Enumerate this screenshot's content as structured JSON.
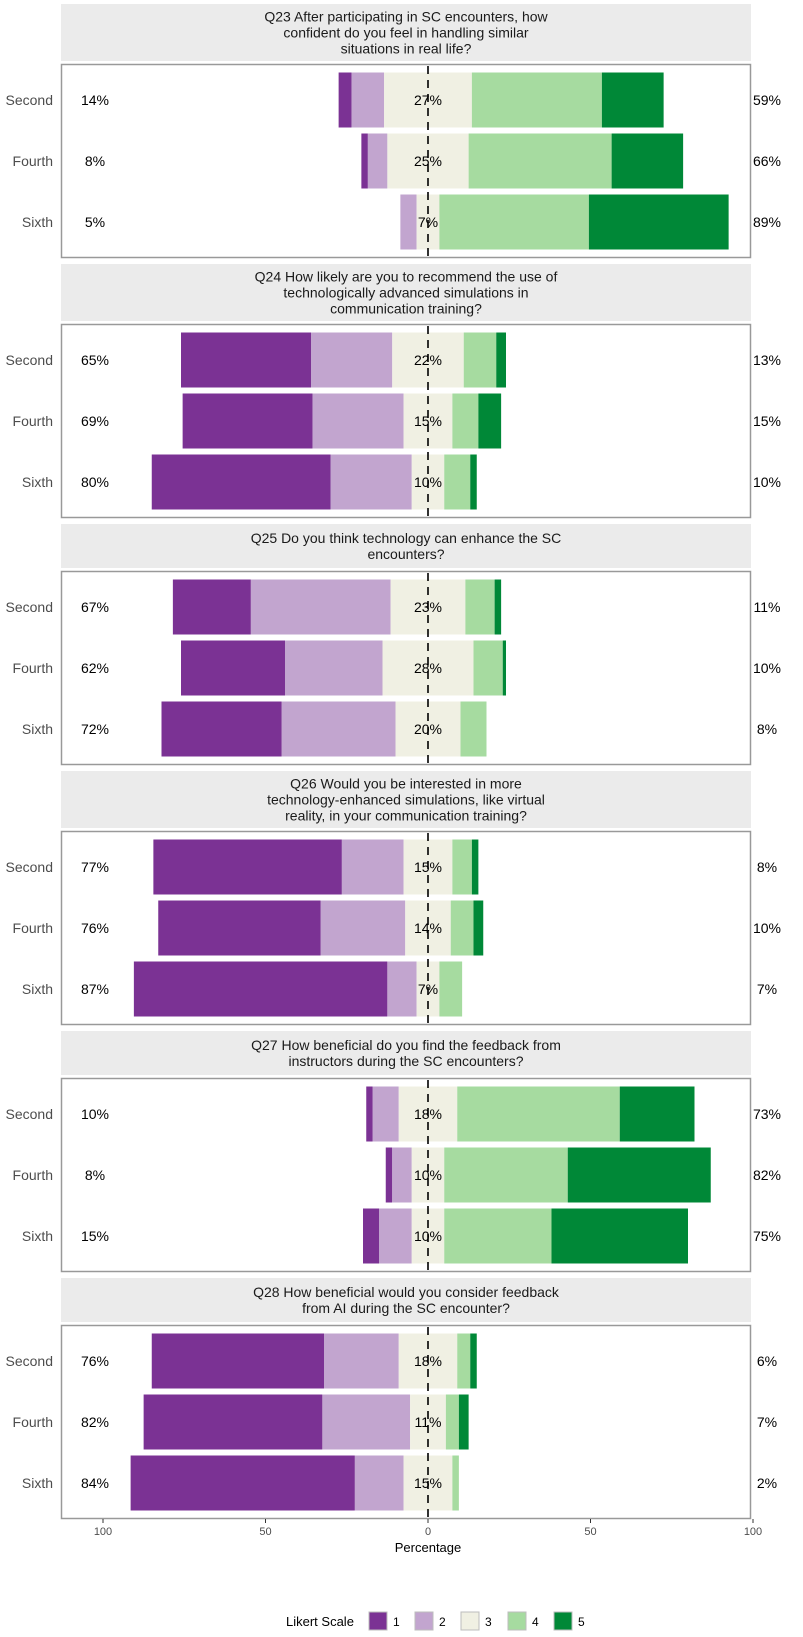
{
  "chart_data": {
    "type": "bar",
    "subtype": "diverging-stacked-likert",
    "xlabel": "Percentage",
    "xlim": [
      -100,
      100
    ],
    "x_ticks": [
      -100,
      -50,
      0,
      50,
      100
    ],
    "x_tick_labels": [
      "100",
      "50",
      "0",
      "50",
      "100"
    ],
    "legend": {
      "title": "Likert Scale",
      "placement": "bottom",
      "levels": [
        "1",
        "2",
        "3",
        "4",
        "5"
      ]
    },
    "colors": {
      "1": "#7b3294",
      "2": "#c2a5cf",
      "3": "#f0f0e3",
      "4": "#a6dba0",
      "5": "#008837"
    },
    "panels": [
      {
        "title_lines": [
          "Q23 After participating in SC encounters, how",
          "confident do you feel in handling similar",
          "situations in real life?"
        ],
        "rows": [
          {
            "label": "Second",
            "values": [
              4,
              10,
              27,
              40,
              19
            ],
            "left_label": "14%",
            "mid_label": "27%",
            "right_label": "59%"
          },
          {
            "label": "Fourth",
            "values": [
              2,
              6,
              25,
              44,
              22
            ],
            "left_label": "8%",
            "mid_label": "25%",
            "right_label": "66%"
          },
          {
            "label": "Sixth",
            "values": [
              0,
              5,
              7,
              46,
              43
            ],
            "left_label": "5%",
            "mid_label": "7%",
            "right_label": "89%"
          }
        ]
      },
      {
        "title_lines": [
          "Q24 How likely are you to recommend the use of",
          "technologically advanced simulations in",
          "communication training?"
        ],
        "rows": [
          {
            "label": "Second",
            "values": [
              40,
              25,
              22,
              10,
              3
            ],
            "left_label": "65%",
            "mid_label": "22%",
            "right_label": "13%"
          },
          {
            "label": "Fourth",
            "values": [
              40,
              28,
              15,
              8,
              7
            ],
            "left_label": "69%",
            "mid_label": "15%",
            "right_label": "15%"
          },
          {
            "label": "Sixth",
            "values": [
              55,
              25,
              10,
              8,
              2
            ],
            "left_label": "80%",
            "mid_label": "10%",
            "right_label": "10%"
          }
        ]
      },
      {
        "title_lines": [
          "Q25 Do you think technology can enhance the SC",
          "encounters?"
        ],
        "rows": [
          {
            "label": "Second",
            "values": [
              24,
              43,
              23,
              9,
              2
            ],
            "left_label": "67%",
            "mid_label": "23%",
            "right_label": "11%"
          },
          {
            "label": "Fourth",
            "values": [
              32,
              30,
              28,
              9,
              1
            ],
            "left_label": "62%",
            "mid_label": "28%",
            "right_label": "10%"
          },
          {
            "label": "Sixth",
            "values": [
              37,
              35,
              20,
              8,
              0
            ],
            "left_label": "72%",
            "mid_label": "20%",
            "right_label": "8%"
          }
        ]
      },
      {
        "title_lines": [
          "Q26 Would you be interested in more",
          "technology-enhanced simulations, like virtual",
          "reality, in your communication training?"
        ],
        "rows": [
          {
            "label": "Second",
            "values": [
              58,
              19,
              15,
              6,
              2
            ],
            "left_label": "77%",
            "mid_label": "15%",
            "right_label": "8%"
          },
          {
            "label": "Fourth",
            "values": [
              50,
              26,
              14,
              7,
              3
            ],
            "left_label": "76%",
            "mid_label": "14%",
            "right_label": "10%"
          },
          {
            "label": "Sixth",
            "values": [
              78,
              9,
              7,
              7,
              0
            ],
            "left_label": "87%",
            "mid_label": "7%",
            "right_label": "7%"
          }
        ]
      },
      {
        "title_lines": [
          "Q27 How beneficial do you find the feedback from",
          "instructors during the SC encounters?"
        ],
        "rows": [
          {
            "label": "Second",
            "values": [
              2,
              8,
              18,
              50,
              23
            ],
            "left_label": "10%",
            "mid_label": "18%",
            "right_label": "73%"
          },
          {
            "label": "Fourth",
            "values": [
              2,
              6,
              10,
              38,
              44
            ],
            "left_label": "8%",
            "mid_label": "10%",
            "right_label": "82%"
          },
          {
            "label": "Sixth",
            "values": [
              5,
              10,
              10,
              33,
              42
            ],
            "left_label": "15%",
            "mid_label": "10%",
            "right_label": "75%"
          }
        ]
      },
      {
        "title_lines": [
          "Q28 How beneficial would you consider feedback",
          "from AI during the SC encounter?"
        ],
        "rows": [
          {
            "label": "Second",
            "values": [
              53,
              23,
              18,
              4,
              2
            ],
            "left_label": "76%",
            "mid_label": "18%",
            "right_label": "6%"
          },
          {
            "label": "Fourth",
            "values": [
              55,
              27,
              11,
              4,
              3
            ],
            "left_label": "82%",
            "mid_label": "11%",
            "right_label": "7%"
          },
          {
            "label": "Sixth",
            "values": [
              69,
              15,
              15,
              2,
              0
            ],
            "left_label": "84%",
            "mid_label": "15%",
            "right_label": "2%"
          }
        ]
      }
    ]
  }
}
